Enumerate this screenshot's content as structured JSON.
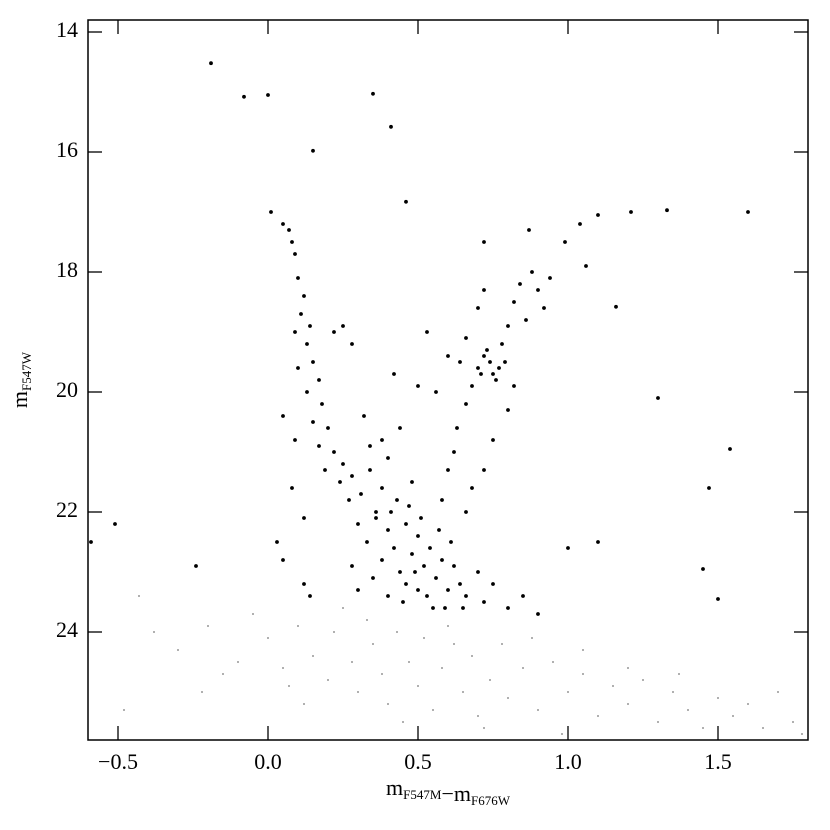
{
  "chart_data": {
    "type": "scatter",
    "xlabel": [
      {
        "text": "m",
        "sub": "F547M"
      },
      {
        "text": "−m",
        "sub": "F676W"
      }
    ],
    "ylabel": [
      {
        "text": "m",
        "sub": "F547W"
      }
    ],
    "xlim": [
      -0.6,
      1.8
    ],
    "ylim": [
      13.8,
      25.8
    ],
    "y_inverted": true,
    "xticks": [
      {
        "value": -0.5,
        "label": "−0.5"
      },
      {
        "value": 0,
        "label": "0.0"
      },
      0.5,
      {
        "value": 1,
        "label": "1.0"
      },
      1.5
    ],
    "yticks": [
      14,
      16,
      18,
      20,
      22,
      24
    ],
    "series": [
      {
        "color": "#000000",
        "size": 1.9,
        "x": [
          -0.19,
          -0.08,
          0.0,
          0.35,
          0.41,
          0.15,
          0.46,
          0.01,
          1.1,
          1.21,
          1.33,
          1.6,
          1.04,
          0.99,
          0.87,
          0.72,
          1.06,
          1.16,
          1.3,
          1.54,
          1.47,
          1.45,
          1.5,
          -0.51,
          -0.59,
          -0.24,
          1.1,
          1.0,
          0.53,
          0.05,
          0.07,
          0.08,
          0.09,
          0.1,
          0.12,
          0.11,
          0.14,
          0.09,
          0.13,
          0.15,
          0.1,
          0.17,
          0.13,
          0.18,
          0.15,
          0.2,
          0.17,
          0.22,
          0.19,
          0.25,
          0.24,
          0.28,
          0.27,
          0.31,
          0.22,
          0.25,
          0.28,
          0.05,
          0.09,
          0.32,
          0.34,
          0.08,
          0.12,
          0.03,
          0.05,
          0.12,
          0.14,
          0.3,
          0.33,
          0.36,
          0.38,
          0.4,
          0.42,
          0.44,
          0.46,
          0.48,
          0.5,
          0.52,
          0.54,
          0.56,
          0.58,
          0.6,
          0.62,
          0.64,
          0.66,
          0.35,
          0.4,
          0.45,
          0.5,
          0.55,
          0.3,
          0.28,
          0.7,
          0.72,
          0.75,
          0.8,
          0.43,
          0.47,
          0.38,
          0.51,
          0.57,
          0.61,
          0.36,
          0.49,
          0.53,
          0.41,
          0.46,
          0.59,
          0.65,
          0.85,
          0.9,
          0.34,
          0.4,
          0.44,
          0.38,
          0.48,
          0.42,
          0.5,
          0.58,
          0.6,
          0.62,
          0.63,
          0.66,
          0.68,
          0.7,
          0.72,
          0.74,
          0.75,
          0.77,
          0.73,
          0.76,
          0.71,
          0.79,
          0.78,
          0.8,
          0.82,
          0.84,
          0.88,
          0.9,
          0.92,
          0.86,
          0.94,
          0.82,
          0.8,
          0.75,
          0.72,
          0.68,
          0.66,
          0.64,
          0.6,
          0.7,
          0.72,
          0.66,
          0.56
        ],
        "values": [
          14.52,
          15.08,
          15.05,
          15.03,
          15.58,
          15.98,
          16.83,
          17.0,
          17.05,
          17.0,
          16.97,
          17.0,
          17.2,
          17.5,
          17.3,
          17.5,
          17.9,
          18.58,
          20.1,
          20.95,
          21.6,
          22.95,
          23.45,
          22.2,
          22.5,
          22.9,
          22.5,
          22.6,
          19.0,
          17.2,
          17.3,
          17.5,
          17.7,
          18.1,
          18.4,
          18.7,
          18.9,
          19.0,
          19.2,
          19.5,
          19.6,
          19.8,
          20.0,
          20.2,
          20.5,
          20.6,
          20.9,
          21.0,
          21.3,
          21.2,
          21.5,
          21.4,
          21.8,
          21.7,
          19.0,
          18.9,
          19.2,
          20.4,
          20.8,
          20.4,
          20.9,
          21.6,
          22.1,
          22.5,
          22.8,
          23.2,
          23.4,
          22.2,
          22.5,
          22.1,
          22.8,
          22.3,
          22.6,
          23.0,
          22.2,
          22.7,
          22.4,
          22.9,
          22.6,
          23.1,
          22.8,
          23.3,
          22.9,
          23.2,
          23.4,
          23.1,
          23.4,
          23.5,
          23.3,
          23.6,
          23.3,
          22.9,
          23.0,
          23.5,
          23.2,
          23.6,
          21.8,
          21.9,
          21.6,
          22.1,
          22.3,
          22.5,
          22.0,
          23.0,
          23.4,
          22.0,
          23.2,
          23.6,
          23.6,
          23.4,
          23.7,
          21.3,
          21.1,
          20.6,
          20.8,
          21.5,
          19.7,
          19.9,
          21.8,
          21.3,
          21.0,
          20.6,
          20.2,
          19.9,
          19.6,
          19.4,
          19.5,
          19.7,
          19.6,
          19.3,
          19.8,
          19.7,
          19.5,
          19.2,
          18.9,
          18.5,
          18.2,
          18.0,
          18.3,
          18.6,
          18.8,
          18.1,
          19.9,
          20.3,
          20.8,
          21.3,
          21.6,
          22.0,
          19.5,
          19.4,
          18.6,
          18.3,
          19.1,
          20.0
        ]
      },
      {
        "color": "#777777",
        "size": 0.9,
        "x": [
          -0.43,
          -0.38,
          -0.3,
          -0.2,
          -0.1,
          -0.05,
          0.0,
          0.05,
          0.1,
          0.15,
          0.2,
          0.22,
          0.28,
          0.3,
          0.35,
          0.38,
          0.4,
          0.43,
          0.47,
          0.5,
          0.52,
          0.55,
          0.58,
          0.62,
          0.65,
          0.68,
          0.7,
          0.74,
          0.78,
          0.8,
          0.85,
          0.9,
          0.95,
          1.0,
          1.05,
          1.1,
          1.15,
          1.2,
          1.25,
          1.3,
          1.35,
          1.4,
          1.45,
          1.5,
          1.55,
          1.6,
          1.65,
          1.7,
          1.75,
          1.78,
          -0.48,
          -0.22,
          0.12,
          0.33,
          0.6,
          0.88,
          1.05,
          1.2,
          0.25,
          0.45,
          0.72,
          0.98,
          -0.15,
          0.07,
          1.37
        ],
        "values": [
          23.4,
          24.0,
          24.3,
          23.9,
          24.5,
          23.7,
          24.1,
          24.6,
          23.9,
          24.4,
          24.8,
          24.0,
          24.5,
          25.0,
          24.2,
          24.7,
          25.2,
          24.0,
          24.5,
          24.9,
          24.1,
          25.3,
          24.6,
          24.2,
          25.0,
          24.4,
          25.4,
          24.8,
          24.2,
          25.1,
          24.6,
          25.3,
          24.5,
          25.0,
          24.7,
          25.4,
          24.9,
          25.2,
          24.8,
          25.5,
          25.0,
          25.3,
          25.6,
          25.1,
          25.4,
          25.2,
          25.6,
          25.0,
          25.5,
          25.7,
          25.3,
          25.0,
          25.2,
          23.8,
          23.9,
          24.1,
          24.3,
          24.6,
          23.6,
          25.5,
          25.6,
          25.7,
          24.7,
          24.9,
          24.7
        ]
      }
    ]
  }
}
